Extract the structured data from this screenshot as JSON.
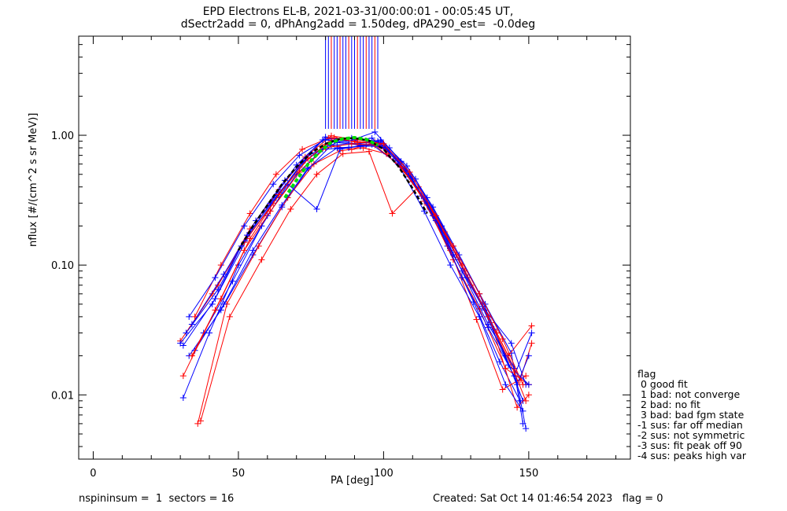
{
  "chart_data": {
    "type": "line",
    "title": "EPD Electrons EL-B, 2021-03-31/00:00:01 - 00:05:45 UT,",
    "subtitle": "dSectr2add = 0, dPhAng2add = 1.50deg, dPA290_est=  -0.0deg",
    "xlabel": "PA [deg]",
    "ylabel": "nflux [#/(cm^2 s sr MeV)]",
    "xlim": [
      -5,
      185
    ],
    "ylim": [
      0.0032,
      5.8
    ],
    "yscale": "log",
    "x_ticks": [
      0,
      50,
      100,
      150
    ],
    "x_tick_labels": [
      "0",
      "50",
      "100",
      "150"
    ],
    "y_ticks": [
      0.01,
      0.1,
      1.0
    ],
    "y_tick_labels": [
      "0.01",
      "0.10",
      "1.00"
    ],
    "grid": false,
    "colors": {
      "series_a": "#ff0000",
      "series_b": "#0000ff",
      "fit": "#00dd00",
      "median": "#000000"
    },
    "series": [
      {
        "color": "#0000ff",
        "x": [
          31,
          42,
          53,
          63,
          72,
          80,
          88,
          96,
          104,
          113,
          122,
          131,
          140,
          147
        ],
        "y": [
          0.024,
          0.055,
          0.16,
          0.33,
          0.62,
          0.97,
          0.9,
          0.95,
          0.66,
          0.34,
          0.14,
          0.052,
          0.018,
          0.009
        ]
      },
      {
        "color": "#ff0000",
        "x": [
          32,
          43,
          54,
          64,
          73,
          82,
          90,
          98,
          106,
          115,
          124,
          133,
          142,
          150
        ],
        "y": [
          0.03,
          0.07,
          0.19,
          0.38,
          0.68,
          0.99,
          0.93,
          0.88,
          0.6,
          0.29,
          0.11,
          0.046,
          0.016,
          0.012
        ]
      },
      {
        "color": "#0000ff",
        "x": [
          33,
          44,
          55,
          65,
          74,
          82,
          91,
          99,
          108,
          117,
          126,
          135,
          144,
          148
        ],
        "y": [
          0.02,
          0.045,
          0.12,
          0.28,
          0.55,
          0.84,
          0.86,
          0.92,
          0.58,
          0.28,
          0.12,
          0.05,
          0.021,
          0.006
        ]
      },
      {
        "color": "#ff0000",
        "x": [
          30,
          41,
          52,
          62,
          71,
          80,
          89,
          97,
          105,
          114,
          123,
          132,
          141,
          149
        ],
        "y": [
          0.026,
          0.06,
          0.15,
          0.3,
          0.57,
          0.85,
          0.78,
          0.88,
          0.64,
          0.31,
          0.13,
          0.038,
          0.011,
          0.014
        ]
      },
      {
        "color": "#0000ff",
        "x": [
          34,
          45,
          56,
          66,
          75,
          84,
          92,
          100,
          109,
          118,
          127,
          136,
          145,
          151
        ],
        "y": [
          0.035,
          0.085,
          0.22,
          0.45,
          0.72,
          0.88,
          0.84,
          0.81,
          0.5,
          0.22,
          0.08,
          0.033,
          0.014,
          0.03
        ]
      },
      {
        "color": "#ff0000",
        "x": [
          36,
          46,
          57,
          67,
          76,
          85,
          93,
          101,
          110,
          119,
          128,
          137,
          146,
          150
        ],
        "y": [
          0.006,
          0.05,
          0.14,
          0.33,
          0.6,
          0.76,
          0.8,
          0.72,
          0.44,
          0.21,
          0.09,
          0.036,
          0.008,
          0.01
        ]
      },
      {
        "color": "#0000ff",
        "x": [
          31,
          40,
          50,
          60,
          70,
          79,
          88,
          96,
          105,
          114,
          123,
          133,
          142,
          148
        ],
        "y": [
          0.0095,
          0.03,
          0.1,
          0.24,
          0.5,
          0.78,
          0.8,
          0.85,
          0.6,
          0.26,
          0.1,
          0.04,
          0.012,
          0.0075
        ]
      },
      {
        "color": "#ff0000",
        "x": [
          35,
          44,
          54,
          63,
          72,
          81,
          90,
          99,
          107,
          116,
          125,
          134,
          143,
          151
        ],
        "y": [
          0.04,
          0.1,
          0.25,
          0.5,
          0.78,
          0.95,
          0.9,
          0.87,
          0.55,
          0.27,
          0.12,
          0.05,
          0.02,
          0.034
        ]
      },
      {
        "color": "#0000ff",
        "x": [
          32,
          43,
          53,
          64,
          73,
          83,
          91,
          99,
          108,
          117,
          126,
          135,
          144,
          149
        ],
        "y": [
          0.03,
          0.065,
          0.17,
          0.36,
          0.64,
          0.9,
          0.86,
          0.9,
          0.53,
          0.24,
          0.11,
          0.045,
          0.025,
          0.012
        ]
      },
      {
        "color": "#ff0000",
        "x": [
          37,
          47,
          58,
          68,
          77,
          86,
          95,
          103,
          112,
          121,
          130,
          139,
          147,
          151
        ],
        "y": [
          0.0063,
          0.04,
          0.11,
          0.27,
          0.5,
          0.72,
          0.75,
          0.25,
          0.4,
          0.18,
          0.07,
          0.03,
          0.013,
          0.025
        ]
      },
      {
        "color": "#0000ff",
        "x": [
          33,
          42,
          52,
          62,
          71,
          80,
          89,
          98,
          106,
          115,
          124,
          133,
          142,
          148
        ],
        "y": [
          0.04,
          0.08,
          0.2,
          0.42,
          0.7,
          0.93,
          0.95,
          0.9,
          0.62,
          0.33,
          0.14,
          0.06,
          0.02,
          0.009
        ]
      },
      {
        "color": "#0000ff",
        "x": [
          35,
          45,
          55,
          65,
          74,
          84,
          92,
          100,
          109,
          118,
          127,
          136,
          145,
          149
        ],
        "y": [
          0.022,
          0.05,
          0.13,
          0.29,
          0.56,
          0.8,
          0.82,
          0.83,
          0.48,
          0.23,
          0.09,
          0.035,
          0.016,
          0.0055
        ]
      },
      {
        "color": "#0000ff",
        "x": [
          38,
          48,
          58,
          67,
          77,
          85,
          94,
          102,
          111,
          120,
          129,
          138,
          146,
          150
        ],
        "y": [
          0.03,
          0.075,
          0.2,
          0.42,
          0.27,
          0.78,
          0.85,
          0.8,
          0.46,
          0.2,
          0.08,
          0.032,
          0.012,
          0.02
        ]
      },
      {
        "color": "#ff0000",
        "x": [
          31,
          42,
          52,
          61,
          71,
          80,
          89,
          97,
          106,
          115,
          124,
          133,
          141,
          148
        ],
        "y": [
          0.014,
          0.045,
          0.13,
          0.26,
          0.52,
          0.8,
          0.86,
          0.84,
          0.57,
          0.3,
          0.14,
          0.06,
          0.027,
          0.012
        ]
      },
      {
        "color": "#0000ff",
        "x": [
          30,
          41,
          51,
          61,
          70,
          79,
          88,
          97,
          106,
          115,
          124,
          134,
          143,
          150
        ],
        "y": [
          0.025,
          0.05,
          0.14,
          0.3,
          0.59,
          0.92,
          0.9,
          1.06,
          0.63,
          0.3,
          0.12,
          0.048,
          0.017,
          0.012
        ]
      },
      {
        "color": "#ff0000",
        "x": [
          34,
          44,
          54,
          64,
          74,
          83,
          91,
          100,
          109,
          118,
          127,
          136,
          145,
          149
        ],
        "y": [
          0.02,
          0.055,
          0.16,
          0.35,
          0.66,
          0.96,
          0.88,
          0.86,
          0.52,
          0.24,
          0.1,
          0.04,
          0.015,
          0.009
        ]
      }
    ],
    "fit_line": {
      "name": "",
      "color": "#00dd00",
      "x": [
        66,
        70,
        74,
        78,
        82,
        86,
        90,
        94,
        98
      ],
      "y": [
        0.33,
        0.45,
        0.6,
        0.75,
        0.88,
        0.94,
        0.96,
        0.93,
        0.84
      ]
    },
    "median_line": {
      "name": "",
      "color": "#000000",
      "x": [
        50,
        55,
        60,
        65,
        70,
        75,
        80,
        85,
        90,
        95,
        100,
        105,
        110,
        115
      ],
      "y": [
        0.13,
        0.2,
        0.29,
        0.42,
        0.57,
        0.73,
        0.86,
        0.94,
        0.95,
        0.91,
        0.78,
        0.58,
        0.39,
        0.25
      ]
    },
    "top_lines_x": [
      80,
      81,
      82,
      83,
      84,
      85,
      86,
      87,
      88,
      89,
      90,
      91,
      92,
      93,
      94,
      95,
      96,
      97,
      98
    ],
    "legend": {
      "title": "flag",
      "entries": [
        " 0 good fit",
        " 1 bad: not converge",
        " 2 bad: no fit",
        " 3 bad: bad fgm state",
        "-1 sus: far off median",
        "-2 sus: not symmetric",
        "-3 sus: fit peak off 90",
        "-4 sus: peaks high var"
      ]
    }
  },
  "footer": {
    "left": "nspininsum =  1  sectors = 16",
    "right": "Created: Sat Oct 14 01:46:54 2023   flag = 0"
  }
}
